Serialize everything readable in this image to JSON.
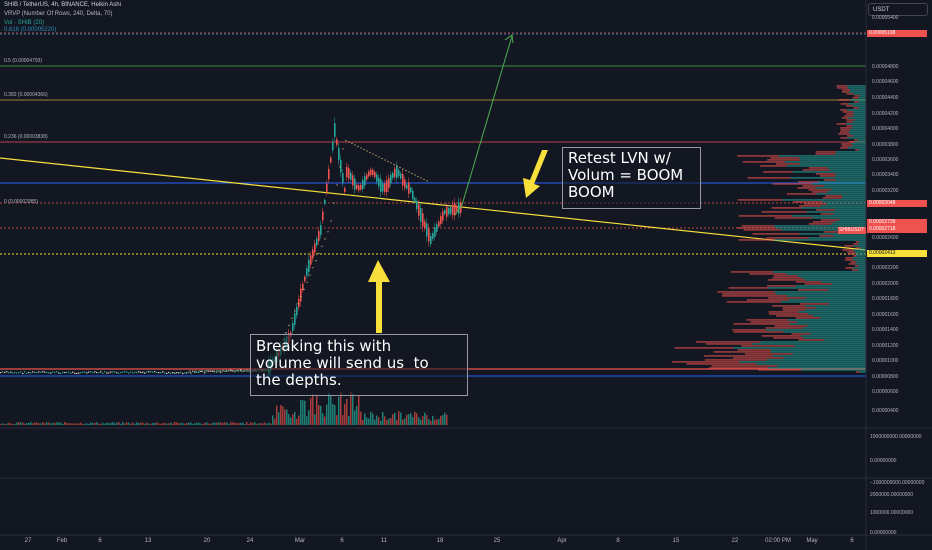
{
  "header": {
    "title": "SHIB / TetherUS, 4h, BINANCE, Heikin Ashi",
    "indicator1": "VRVP (Number Of Rows, 240, Delta, 70)",
    "indicator2": "Vol · SHIB (20)",
    "indicator3": "0.618 (0.00005220)"
  },
  "currency_button": "USDT",
  "fib_levels": [
    {
      "label": "0.5 (0.00004793)",
      "color": "#4caf50"
    },
    {
      "label": "0.382 (0.00004366)",
      "color": "#c8a43a"
    },
    {
      "label": "0.236 (0.00003838)",
      "color": "#ef5350"
    },
    {
      "label": "0 (0.00002985)",
      "color": "#9598a1"
    }
  ],
  "price_axis": [
    "0.00005400",
    "0.00005000",
    "0.00004800",
    "0.00004600",
    "0.00004400",
    "0.00004200",
    "0.00004000",
    "0.00003800",
    "0.00003600",
    "0.00003400",
    "0.00003200",
    "0.00003000",
    "0.00002800",
    "0.00002600",
    "0.00002400",
    "0.00002200",
    "0.00002000",
    "0.00001800",
    "0.00001600",
    "0.00001400",
    "0.00001200",
    "0.00001000",
    "0.00000800",
    "0.00000600",
    "0.00000400"
  ],
  "price_badges": [
    {
      "text": "0.00005198",
      "color": "#ef5350"
    },
    {
      "text": "0.00003048",
      "color": "#ef5350"
    },
    {
      "text": "0.00002739",
      "color": "#ef5350"
    },
    {
      "text": "0.00002718",
      "color": "#ef5350"
    },
    {
      "text": "0.00002413",
      "color": "#f7e03c"
    }
  ],
  "symbol_badge": "SHIBUSDT",
  "volume_axis": [
    "1000000000.00000000",
    "0.00000000",
    "−1000000000.00000000",
    "2000000.00000000",
    "1000000.00000000",
    "0.00000000"
  ],
  "time_axis": [
    "27",
    "Feb",
    "6",
    "13",
    "20",
    "24",
    "Mar",
    "6",
    "11",
    "18",
    "25",
    "Apr",
    "8",
    "15",
    "22",
    "02:00 PM",
    "May",
    "6"
  ],
  "annotations": {
    "retest": [
      "Retest LVN w/",
      "Volum = BOOM",
      "BOOM"
    ],
    "breaking": [
      "Breaking this with",
      "volume will send us  to",
      "the depths."
    ]
  },
  "colors": {
    "background": "#131722",
    "up": "#26a69a",
    "down": "#ef5350",
    "trendline": "#f7e03c",
    "blue_level": "#2962ff",
    "arrow_yellow": "#f7e03c",
    "projection": "#4caf50"
  }
}
